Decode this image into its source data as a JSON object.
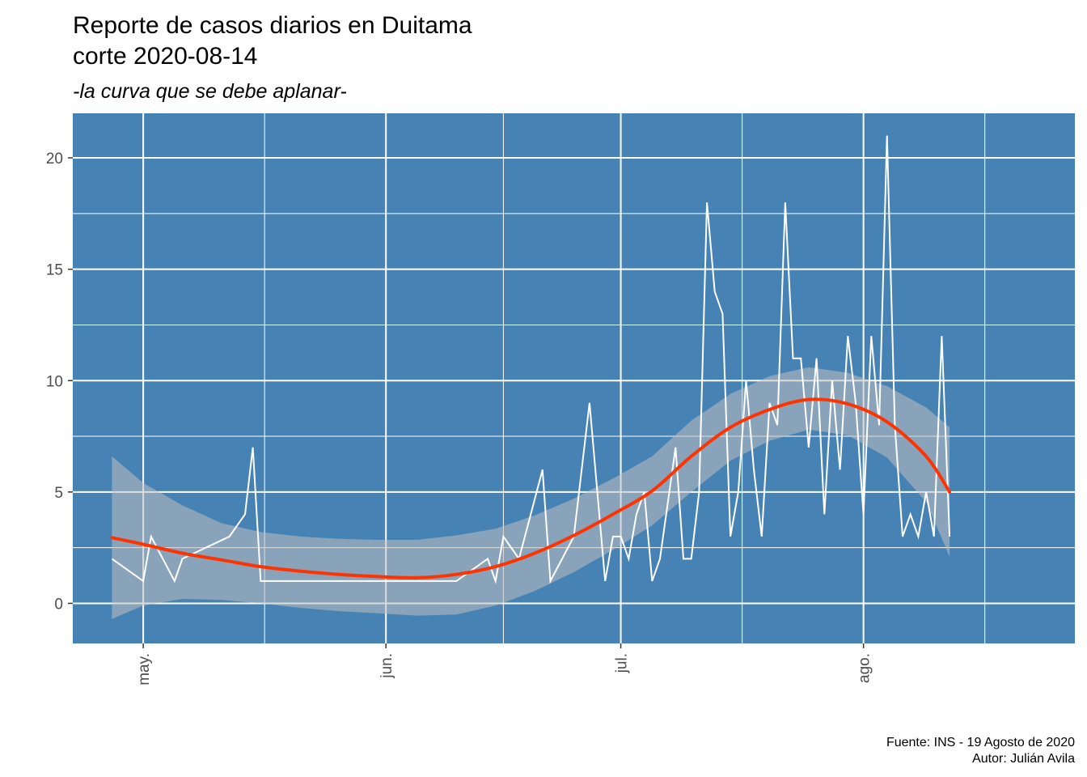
{
  "colors": {
    "panel_background": "#4682b4",
    "grid_line": "#ffffff",
    "daily_line": "#ffffff",
    "smooth_line": "#ff3300",
    "confidence_band": "#bfbfbf"
  },
  "chart_data": {
    "type": "line",
    "title_line1": "Reporte de casos diarios en Duitama",
    "title_line2": "corte 2020-08-14",
    "subtitle": "-la curva que se debe aplanar-",
    "caption_line1": "Fuente: INS - 19 Agosto de 2020",
    "caption_line2": "Autor: Julián Avila",
    "xlabel": "",
    "ylabel": "",
    "x_type": "date",
    "xlim": [
      "2020-04-22",
      "2020-08-28"
    ],
    "ylim": [
      -1.8,
      22
    ],
    "x_ticks": [
      {
        "date": "2020-05-01",
        "label": "may."
      },
      {
        "date": "2020-06-01",
        "label": "jun."
      },
      {
        "date": "2020-07-01",
        "label": "jul."
      },
      {
        "date": "2020-08-01",
        "label": "ago."
      }
    ],
    "y_ticks": [
      0,
      5,
      10,
      15,
      20
    ],
    "grid": true,
    "series": [
      {
        "style": "thin-line",
        "points": [
          [
            "2020-04-27",
            2
          ],
          [
            "2020-05-01",
            1
          ],
          [
            "2020-05-02",
            3
          ],
          [
            "2020-05-05",
            1
          ],
          [
            "2020-05-06",
            2
          ],
          [
            "2020-05-12",
            3
          ],
          [
            "2020-05-14",
            4
          ],
          [
            "2020-05-15",
            7
          ],
          [
            "2020-05-16",
            1
          ],
          [
            "2020-05-26",
            1
          ],
          [
            "2020-06-05",
            1
          ],
          [
            "2020-06-10",
            1
          ],
          [
            "2020-06-14",
            2
          ],
          [
            "2020-06-15",
            1
          ],
          [
            "2020-06-16",
            3
          ],
          [
            "2020-06-18",
            2
          ],
          [
            "2020-06-21",
            6
          ],
          [
            "2020-06-22",
            1
          ],
          [
            "2020-06-25",
            3
          ],
          [
            "2020-06-27",
            9
          ],
          [
            "2020-06-29",
            1
          ],
          [
            "2020-06-30",
            3
          ],
          [
            "2020-07-01",
            3
          ],
          [
            "2020-07-02",
            2
          ],
          [
            "2020-07-03",
            4
          ],
          [
            "2020-07-04",
            5
          ],
          [
            "2020-07-05",
            1
          ],
          [
            "2020-07-06",
            2
          ],
          [
            "2020-07-08",
            7
          ],
          [
            "2020-07-09",
            2
          ],
          [
            "2020-07-10",
            2
          ],
          [
            "2020-07-11",
            5
          ],
          [
            "2020-07-12",
            18
          ],
          [
            "2020-07-13",
            14
          ],
          [
            "2020-07-14",
            13
          ],
          [
            "2020-07-15",
            3
          ],
          [
            "2020-07-16",
            5
          ],
          [
            "2020-07-17",
            10
          ],
          [
            "2020-07-18",
            6
          ],
          [
            "2020-07-19",
            3
          ],
          [
            "2020-07-20",
            9
          ],
          [
            "2020-07-21",
            8
          ],
          [
            "2020-07-22",
            18
          ],
          [
            "2020-07-23",
            11
          ],
          [
            "2020-07-24",
            11
          ],
          [
            "2020-07-25",
            7
          ],
          [
            "2020-07-26",
            11
          ],
          [
            "2020-07-27",
            4
          ],
          [
            "2020-07-28",
            10
          ],
          [
            "2020-07-29",
            6
          ],
          [
            "2020-07-30",
            12
          ],
          [
            "2020-07-31",
            9
          ],
          [
            "2020-08-01",
            4
          ],
          [
            "2020-08-02",
            12
          ],
          [
            "2020-08-03",
            8
          ],
          [
            "2020-08-04",
            21
          ],
          [
            "2020-08-05",
            8
          ],
          [
            "2020-08-06",
            3
          ],
          [
            "2020-08-07",
            4
          ],
          [
            "2020-08-08",
            3
          ],
          [
            "2020-08-09",
            5
          ],
          [
            "2020-08-10",
            3
          ],
          [
            "2020-08-11",
            12
          ],
          [
            "2020-08-12",
            3
          ]
        ]
      },
      {
        "style": "smooth-with-band",
        "points": [
          [
            "2020-04-27",
            2.95,
            -0.7,
            6.6
          ],
          [
            "2020-05-01",
            2.65,
            -0.1,
            5.4
          ],
          [
            "2020-05-06",
            2.25,
            0.2,
            4.4
          ],
          [
            "2020-05-11",
            1.95,
            0.15,
            3.6
          ],
          [
            "2020-05-16",
            1.65,
            0.0,
            3.2
          ],
          [
            "2020-05-21",
            1.45,
            -0.2,
            3.0
          ],
          [
            "2020-05-26",
            1.3,
            -0.35,
            2.9
          ],
          [
            "2020-05-31",
            1.2,
            -0.45,
            2.85
          ],
          [
            "2020-06-05",
            1.15,
            -0.55,
            2.85
          ],
          [
            "2020-06-10",
            1.3,
            -0.5,
            3.05
          ],
          [
            "2020-06-15",
            1.65,
            -0.1,
            3.35
          ],
          [
            "2020-06-20",
            2.25,
            0.55,
            3.95
          ],
          [
            "2020-06-25",
            3.05,
            1.4,
            4.7
          ],
          [
            "2020-06-30",
            4.0,
            2.4,
            5.6
          ],
          [
            "2020-07-05",
            5.05,
            3.5,
            6.6
          ],
          [
            "2020-07-10",
            6.6,
            5.0,
            8.2
          ],
          [
            "2020-07-15",
            7.9,
            6.4,
            9.4
          ],
          [
            "2020-07-20",
            8.7,
            7.3,
            10.2
          ],
          [
            "2020-07-25",
            9.15,
            7.8,
            10.6
          ],
          [
            "2020-07-30",
            8.95,
            7.55,
            10.35
          ],
          [
            "2020-08-04",
            8.15,
            6.55,
            9.75
          ],
          [
            "2020-08-09",
            6.6,
            4.55,
            8.8
          ],
          [
            "2020-08-12",
            5.0,
            2.1,
            7.9
          ]
        ]
      }
    ]
  }
}
